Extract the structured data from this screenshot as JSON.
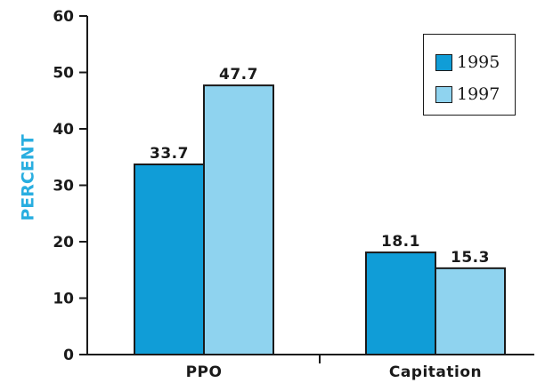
{
  "chart_data": {
    "type": "bar",
    "title": "",
    "xlabel": "",
    "ylabel": "PERCENT",
    "ylim": [
      0,
      60
    ],
    "yticks": [
      "0",
      "10",
      "20",
      "30",
      "40",
      "50",
      "60"
    ],
    "categories": [
      "PPO",
      "Capitation"
    ],
    "series": [
      {
        "name": "1995",
        "color": "#109dd7",
        "values": [
          33.7,
          18.1
        ],
        "labels": [
          "33.7",
          "18.1"
        ]
      },
      {
        "name": "1997",
        "color": "#8fd3ef",
        "values": [
          47.7,
          15.3
        ],
        "labels": [
          "47.7",
          "15.3"
        ]
      }
    ],
    "legend": {
      "position": "top-right"
    },
    "grid": false
  },
  "colors": {
    "axis": "#1a1a1a",
    "text": "#1a1a1a",
    "ylabel": "#29aee0"
  }
}
